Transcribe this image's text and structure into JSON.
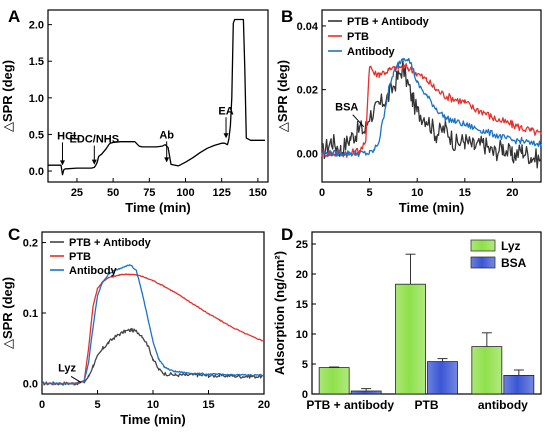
{
  "chart_data": [
    {
      "panel": "A",
      "type": "line",
      "xlabel": "Time (min)",
      "ylabel": "△SPR (deg)",
      "xlim": [
        5,
        157
      ],
      "ylim": [
        -0.15,
        2.2
      ],
      "xticks": [
        25,
        50,
        75,
        100,
        125,
        150
      ],
      "yticks": [
        0.0,
        0.5,
        1.0,
        1.5,
        2.0
      ],
      "ytick_labels": [
        "0.0",
        "0.5",
        "1.0",
        "1.5",
        "2.0"
      ],
      "series": [
        {
          "color": "#000000",
          "x": [
            5,
            10,
            14,
            15,
            16,
            17,
            18,
            25,
            35,
            37,
            38,
            39,
            40,
            42,
            45,
            47,
            48,
            50,
            55,
            62,
            65,
            66,
            67,
            68,
            70,
            75,
            80,
            84,
            86,
            88,
            90,
            95,
            100,
            105,
            110,
            115,
            120,
            125,
            127,
            128,
            129,
            130,
            131,
            132,
            133,
            134,
            140,
            141,
            142,
            145,
            150,
            155
          ],
          "y": [
            0.08,
            0.08,
            0.08,
            -0.05,
            0.02,
            0.03,
            0.03,
            0.04,
            0.04,
            0.05,
            0.08,
            0.12,
            0.2,
            0.23,
            0.3,
            0.36,
            0.38,
            0.39,
            0.4,
            0.4,
            0.4,
            0.38,
            0.36,
            0.34,
            0.33,
            0.33,
            0.33,
            0.34,
            0.36,
            0.32,
            0.09,
            0.07,
            0.12,
            0.18,
            0.25,
            0.31,
            0.35,
            0.38,
            0.38,
            0.37,
            0.36,
            0.44,
            0.62,
            1.0,
            2.02,
            2.07,
            2.07,
            1.4,
            0.45,
            0.42,
            0.42,
            0.42
          ]
        }
      ],
      "annotations": [
        {
          "text": "HCL",
          "x": 15,
          "y": 0.05
        },
        {
          "text": "EDC/NHS",
          "x": 37,
          "y": 0.06
        },
        {
          "text": "Ab",
          "x": 87,
          "y": 0.09
        },
        {
          "text": "EA",
          "x": 128,
          "y": 0.42
        }
      ]
    },
    {
      "panel": "B",
      "type": "line",
      "xlabel": "Time (min)",
      "ylabel": "△SPR (deg)",
      "xlim": [
        0,
        23
      ],
      "ylim": [
        -0.009,
        0.045
      ],
      "xticks": [
        0,
        5,
        10,
        15,
        20
      ],
      "yticks": [
        0.0,
        0.02,
        0.04
      ],
      "ytick_labels": [
        "0.00",
        "0.02",
        "0.04"
      ],
      "legend_position": "top-left",
      "series": [
        {
          "name": "PTB + Antibody",
          "color": "#333333",
          "x": [
            0,
            1,
            2,
            3,
            3.5,
            4,
            4.5,
            5,
            5.5,
            6,
            7,
            8,
            8.5,
            9,
            9.5,
            10,
            11,
            12,
            13,
            14,
            15,
            16,
            17,
            18,
            19,
            20,
            21,
            22,
            23
          ],
          "y": [
            0.0,
            0.004,
            0.001,
            0.005,
            0.006,
            0.008,
            0.007,
            0.012,
            0.013,
            0.015,
            0.018,
            0.024,
            0.027,
            0.022,
            0.017,
            0.013,
            0.011,
            0.006,
            0.008,
            0.003,
            0.004,
            0.002,
            0.003,
            0.0,
            0.002,
            -0.001,
            0.001,
            -0.001,
            -0.002
          ]
        },
        {
          "name": "PTB",
          "color": "#e8302a",
          "x": [
            0,
            1,
            2,
            3,
            4,
            4.6,
            4.8,
            5,
            5.5,
            6,
            7,
            8,
            9,
            10,
            11,
            12,
            13,
            14,
            15,
            16,
            17,
            18,
            19,
            20,
            21,
            22,
            23
          ],
          "y": [
            0.0,
            0.0,
            0.0,
            0.0,
            0.001,
            0.003,
            0.018,
            0.028,
            0.025,
            0.025,
            0.026,
            0.027,
            0.027,
            0.025,
            0.023,
            0.02,
            0.018,
            0.017,
            0.016,
            0.014,
            0.013,
            0.011,
            0.01,
            0.009,
            0.008,
            0.007,
            0.006
          ]
        },
        {
          "name": "Antibody",
          "color": "#1a73c9",
          "x": [
            0,
            1,
            2,
            3,
            4,
            5,
            5.5,
            6,
            6.5,
            7,
            7.5,
            8,
            8.5,
            9,
            9.5,
            10,
            11,
            12,
            13,
            14,
            15,
            16,
            17,
            18,
            19,
            20,
            21,
            22,
            23
          ],
          "y": [
            0.0,
            0.0,
            0.0,
            0.0,
            0.0,
            0.0,
            0.001,
            0.004,
            0.012,
            0.02,
            0.025,
            0.028,
            0.03,
            0.03,
            0.027,
            0.022,
            0.018,
            0.014,
            0.011,
            0.01,
            0.009,
            0.008,
            0.007,
            0.006,
            0.005,
            0.004,
            0.004,
            0.003,
            0.003
          ]
        }
      ],
      "annotations": [
        {
          "text": "BSA",
          "x": 4.7,
          "y": 0.009
        }
      ]
    },
    {
      "panel": "C",
      "type": "line",
      "xlabel": "Time (min)",
      "ylabel": "△SPR (deg)",
      "xlim": [
        0,
        20
      ],
      "ylim": [
        -0.015,
        0.215
      ],
      "xticks": [
        0,
        5,
        10,
        15,
        20
      ],
      "yticks": [
        0.0,
        0.1,
        0.2
      ],
      "ytick_labels": [
        "0.0",
        "0.1",
        "0.2"
      ],
      "legend_position": "top-left",
      "series": [
        {
          "name": "PTB + Antibody",
          "color": "#444444",
          "x": [
            0,
            1,
            2,
            3,
            3.8,
            4.2,
            4.6,
            5,
            5.5,
            6,
            6.5,
            7,
            7.5,
            8,
            8.5,
            9,
            9.5,
            10,
            10.5,
            11,
            12,
            13,
            14,
            15,
            16,
            17,
            18,
            19,
            20
          ],
          "y": [
            0.0,
            0.0,
            0.0,
            0.0,
            0.002,
            0.01,
            0.025,
            0.038,
            0.05,
            0.058,
            0.065,
            0.07,
            0.074,
            0.076,
            0.074,
            0.068,
            0.055,
            0.035,
            0.02,
            0.014,
            0.012,
            0.012,
            0.012,
            0.011,
            0.011,
            0.011,
            0.01,
            0.01,
            0.01
          ]
        },
        {
          "name": "PTB",
          "color": "#e8302a",
          "x": [
            0,
            1,
            2,
            3,
            3.8,
            4.2,
            4.6,
            5,
            5.5,
            6,
            6.5,
            7,
            7.5,
            8,
            8.5,
            9,
            10,
            11,
            12,
            13,
            14,
            15,
            16,
            17,
            18,
            19,
            20
          ],
          "y": [
            0.0,
            0.0,
            0.0,
            0.0,
            0.003,
            0.05,
            0.11,
            0.135,
            0.145,
            0.15,
            0.152,
            0.154,
            0.155,
            0.155,
            0.154,
            0.152,
            0.146,
            0.138,
            0.129,
            0.119,
            0.109,
            0.099,
            0.09,
            0.081,
            0.073,
            0.066,
            0.06
          ]
        },
        {
          "name": "Antibody",
          "color": "#1a73c9",
          "x": [
            0,
            1,
            2,
            3,
            3.8,
            4.2,
            4.6,
            5,
            5.5,
            6,
            6.5,
            7,
            7.5,
            8,
            8.5,
            9,
            9.5,
            10,
            10.5,
            11,
            11.5,
            12,
            13,
            14,
            15,
            16,
            17,
            18,
            19,
            20
          ],
          "y": [
            0.0,
            0.0,
            0.0,
            0.0,
            0.003,
            0.03,
            0.08,
            0.125,
            0.145,
            0.155,
            0.16,
            0.163,
            0.167,
            0.168,
            0.16,
            0.13,
            0.095,
            0.06,
            0.035,
            0.024,
            0.019,
            0.017,
            0.015,
            0.014,
            0.013,
            0.013,
            0.012,
            0.012,
            0.012,
            0.012
          ]
        }
      ],
      "annotations": [
        {
          "text": "Lyz",
          "x": 3.7,
          "y": 0.0
        }
      ]
    },
    {
      "panel": "D",
      "type": "bar",
      "xlabel": "",
      "ylabel": "Adsorption (ng/cm²)",
      "ylim": [
        0,
        27
      ],
      "yticks": [
        0,
        5,
        10,
        15,
        20,
        25
      ],
      "ytick_labels": [
        "0",
        "5",
        "10",
        "15",
        "20",
        "25"
      ],
      "categories": [
        "PTB + antibody",
        "PTB",
        "antibody"
      ],
      "legend_position": "top-right",
      "series": [
        {
          "name": "Lyz",
          "color": "#8fe04a",
          "values": [
            4.4,
            18.3,
            7.9
          ],
          "errors": [
            0.1,
            5.0,
            2.3
          ]
        },
        {
          "name": "BSA",
          "color": "#3a56d4",
          "values": [
            0.5,
            5.4,
            3.1
          ],
          "errors": [
            0.4,
            0.5,
            0.9
          ]
        }
      ]
    }
  ]
}
